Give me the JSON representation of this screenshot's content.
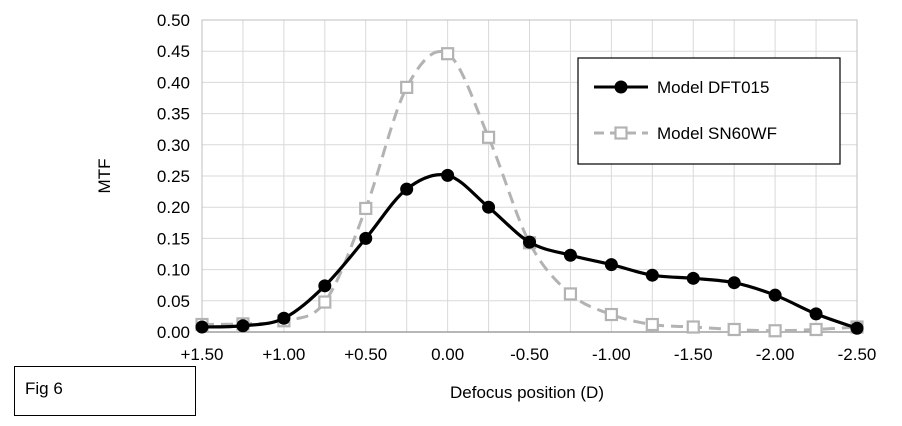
{
  "chart_data": {
    "type": "line",
    "title": "",
    "xlabel": "Defocus position (D)",
    "ylabel": "MTF",
    "x_ticks": [
      "+1.50",
      "+1.25",
      "+1.00",
      "+0.75",
      "+0.50",
      "+0.25",
      "0.00",
      "-0.25",
      "-0.50",
      "-0.75",
      "-1.00",
      "-1.25",
      "-1.50",
      "-1.75",
      "-2.00",
      "-2.25",
      "-2.50"
    ],
    "x_tick_labels": [
      "+1.50",
      "+1.00",
      "+0.50",
      "0.00",
      "-0.50",
      "-1.00",
      "-1.50",
      "-2.00",
      "-2.50"
    ],
    "x_tick_label_values": [
      1.5,
      1.0,
      0.5,
      0.0,
      -0.5,
      -1.0,
      -1.5,
      -2.0,
      -2.5
    ],
    "xlim": [
      1.5,
      -2.5
    ],
    "ylim": [
      0,
      0.5
    ],
    "y_ticks": [
      "0.00",
      "0.05",
      "0.10",
      "0.15",
      "0.20",
      "0.25",
      "0.30",
      "0.35",
      "0.40",
      "0.45",
      "0.50"
    ],
    "grid": true,
    "legend_position": "top-right",
    "x": [
      1.5,
      1.25,
      1.0,
      0.75,
      0.5,
      0.25,
      0.0,
      -0.25,
      -0.5,
      -0.75,
      -1.0,
      -1.25,
      -1.5,
      -1.75,
      -2.0,
      -2.25,
      -2.5
    ],
    "series": [
      {
        "name": "Model DFT015",
        "color": "#000000",
        "marker": "filled-circle",
        "line_style": "solid",
        "values": [
          0.008,
          0.01,
          0.022,
          0.074,
          0.15,
          0.229,
          0.251,
          0.2,
          0.144,
          0.123,
          0.108,
          0.091,
          0.086,
          0.079,
          0.059,
          0.029,
          0.006
        ]
      },
      {
        "name": "Model SN60WF",
        "color": "#b3b3b3",
        "marker": "open-square",
        "line_style": "dashed",
        "values": [
          0.012,
          0.013,
          0.018,
          0.048,
          0.198,
          0.392,
          0.446,
          0.312,
          0.143,
          0.061,
          0.028,
          0.012,
          0.008,
          0.004,
          0.002,
          0.004,
          0.008
        ]
      }
    ]
  },
  "annotation": {
    "fig_label": "Fig 6"
  }
}
